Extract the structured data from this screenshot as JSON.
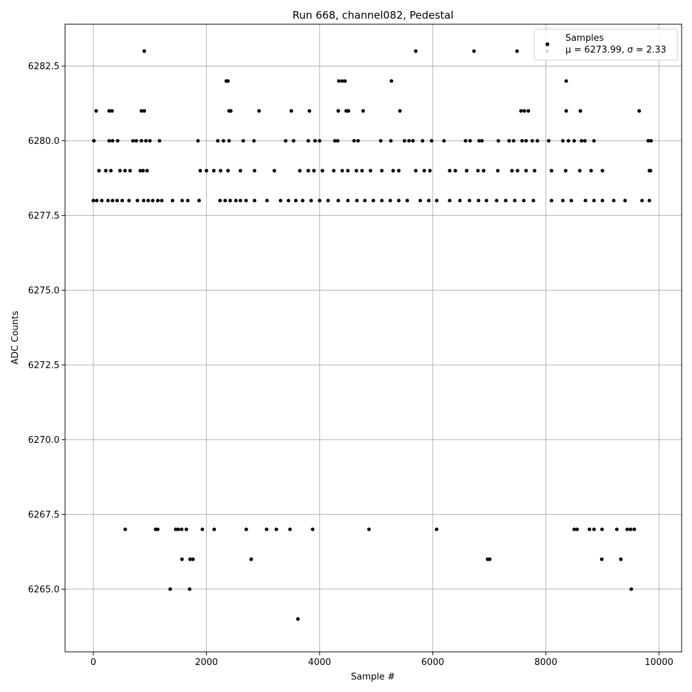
{
  "chart_data": {
    "type": "scatter",
    "title": "Run 668, channel082, Pedestal",
    "xlabel": "Sample #",
    "ylabel": "ADC Counts",
    "xlim": [
      -500,
      10400
    ],
    "ylim": [
      6262.9,
      6283.9
    ],
    "xticks": [
      0,
      2000,
      4000,
      6000,
      8000,
      10000
    ],
    "yticks": [
      6265.0,
      6267.5,
      6270.0,
      6272.5,
      6275.0,
      6277.5,
      6280.0,
      6282.5
    ],
    "grid": true,
    "legend_position": "top-right",
    "color": "#000000",
    "series": [
      {
        "name": "Samples",
        "annotation": "μ = 6273.99, σ = 2.33",
        "mean": 6273.99,
        "sigma": 2.33,
        "points": [
          [
            900,
            6283
          ],
          [
            5700,
            6283
          ],
          [
            6730,
            6283
          ],
          [
            7490,
            6283
          ],
          [
            8020,
            6283
          ],
          [
            2350,
            6282
          ],
          [
            2380,
            6282
          ],
          [
            4340,
            6282
          ],
          [
            4400,
            6282
          ],
          [
            4450,
            6282
          ],
          [
            5270,
            6282
          ],
          [
            8360,
            6282
          ],
          [
            50,
            6281
          ],
          [
            280,
            6281
          ],
          [
            330,
            6281
          ],
          [
            850,
            6281
          ],
          [
            900,
            6281
          ],
          [
            2400,
            6281
          ],
          [
            2430,
            6281
          ],
          [
            2930,
            6281
          ],
          [
            3500,
            6281
          ],
          [
            3820,
            6281
          ],
          [
            4330,
            6281
          ],
          [
            4470,
            6281
          ],
          [
            4510,
            6281
          ],
          [
            4770,
            6281
          ],
          [
            5420,
            6281
          ],
          [
            7560,
            6281
          ],
          [
            7620,
            6281
          ],
          [
            7690,
            6281
          ],
          [
            8360,
            6281
          ],
          [
            8610,
            6281
          ],
          [
            9650,
            6281
          ],
          [
            10,
            6280
          ],
          [
            280,
            6280
          ],
          [
            340,
            6280
          ],
          [
            430,
            6280
          ],
          [
            700,
            6280
          ],
          [
            760,
            6280
          ],
          [
            850,
            6280
          ],
          [
            930,
            6280
          ],
          [
            1000,
            6280
          ],
          [
            1170,
            6280
          ],
          [
            1850,
            6280
          ],
          [
            2200,
            6280
          ],
          [
            2300,
            6280
          ],
          [
            2400,
            6280
          ],
          [
            2650,
            6280
          ],
          [
            2840,
            6280
          ],
          [
            3400,
            6280
          ],
          [
            3540,
            6280
          ],
          [
            3800,
            6280
          ],
          [
            3920,
            6280
          ],
          [
            4000,
            6280
          ],
          [
            4270,
            6280
          ],
          [
            4320,
            6280
          ],
          [
            4610,
            6280
          ],
          [
            4680,
            6280
          ],
          [
            5080,
            6280
          ],
          [
            5260,
            6280
          ],
          [
            5500,
            6280
          ],
          [
            5580,
            6280
          ],
          [
            5650,
            6280
          ],
          [
            5820,
            6280
          ],
          [
            5980,
            6280
          ],
          [
            6200,
            6280
          ],
          [
            6580,
            6280
          ],
          [
            6660,
            6280
          ],
          [
            6820,
            6280
          ],
          [
            6870,
            6280
          ],
          [
            7160,
            6280
          ],
          [
            7350,
            6280
          ],
          [
            7430,
            6280
          ],
          [
            7580,
            6280
          ],
          [
            7650,
            6280
          ],
          [
            7760,
            6280
          ],
          [
            7850,
            6280
          ],
          [
            8050,
            6280
          ],
          [
            8300,
            6280
          ],
          [
            8400,
            6280
          ],
          [
            8500,
            6280
          ],
          [
            8630,
            6280
          ],
          [
            8690,
            6280
          ],
          [
            8850,
            6280
          ],
          [
            9810,
            6280
          ],
          [
            9860,
            6280
          ],
          [
            100,
            6279
          ],
          [
            220,
            6279
          ],
          [
            310,
            6279
          ],
          [
            470,
            6279
          ],
          [
            560,
            6279
          ],
          [
            650,
            6279
          ],
          [
            830,
            6279
          ],
          [
            880,
            6279
          ],
          [
            950,
            6279
          ],
          [
            1890,
            6279
          ],
          [
            2000,
            6279
          ],
          [
            2130,
            6279
          ],
          [
            2250,
            6279
          ],
          [
            2380,
            6279
          ],
          [
            2600,
            6279
          ],
          [
            2850,
            6279
          ],
          [
            3200,
            6279
          ],
          [
            3650,
            6279
          ],
          [
            3800,
            6279
          ],
          [
            3900,
            6279
          ],
          [
            4050,
            6279
          ],
          [
            4250,
            6279
          ],
          [
            4400,
            6279
          ],
          [
            4500,
            6279
          ],
          [
            4650,
            6279
          ],
          [
            4750,
            6279
          ],
          [
            4900,
            6279
          ],
          [
            5100,
            6279
          ],
          [
            5300,
            6279
          ],
          [
            5400,
            6279
          ],
          [
            5700,
            6279
          ],
          [
            5850,
            6279
          ],
          [
            5950,
            6279
          ],
          [
            6300,
            6279
          ],
          [
            6400,
            6279
          ],
          [
            6600,
            6279
          ],
          [
            6800,
            6279
          ],
          [
            6900,
            6279
          ],
          [
            7150,
            6279
          ],
          [
            7400,
            6279
          ],
          [
            7500,
            6279
          ],
          [
            7650,
            6279
          ],
          [
            7800,
            6279
          ],
          [
            8100,
            6279
          ],
          [
            8350,
            6279
          ],
          [
            8600,
            6279
          ],
          [
            8800,
            6279
          ],
          [
            9000,
            6279
          ],
          [
            9830,
            6279
          ],
          [
            9850,
            6279
          ],
          [
            0,
            6278
          ],
          [
            60,
            6278
          ],
          [
            150,
            6278
          ],
          [
            260,
            6278
          ],
          [
            340,
            6278
          ],
          [
            420,
            6278
          ],
          [
            510,
            6278
          ],
          [
            630,
            6278
          ],
          [
            780,
            6278
          ],
          [
            890,
            6278
          ],
          [
            970,
            6278
          ],
          [
            1050,
            6278
          ],
          [
            1140,
            6278
          ],
          [
            1210,
            6278
          ],
          [
            1400,
            6278
          ],
          [
            1570,
            6278
          ],
          [
            1670,
            6278
          ],
          [
            1870,
            6278
          ],
          [
            2240,
            6278
          ],
          [
            2330,
            6278
          ],
          [
            2420,
            6278
          ],
          [
            2520,
            6278
          ],
          [
            2600,
            6278
          ],
          [
            2700,
            6278
          ],
          [
            2850,
            6278
          ],
          [
            3070,
            6278
          ],
          [
            3310,
            6278
          ],
          [
            3450,
            6278
          ],
          [
            3580,
            6278
          ],
          [
            3700,
            6278
          ],
          [
            3850,
            6278
          ],
          [
            4000,
            6278
          ],
          [
            4150,
            6278
          ],
          [
            4330,
            6278
          ],
          [
            4500,
            6278
          ],
          [
            4660,
            6278
          ],
          [
            4800,
            6278
          ],
          [
            4950,
            6278
          ],
          [
            5100,
            6278
          ],
          [
            5250,
            6278
          ],
          [
            5400,
            6278
          ],
          [
            5550,
            6278
          ],
          [
            5780,
            6278
          ],
          [
            5930,
            6278
          ],
          [
            6070,
            6278
          ],
          [
            6300,
            6278
          ],
          [
            6480,
            6278
          ],
          [
            6650,
            6278
          ],
          [
            6810,
            6278
          ],
          [
            6950,
            6278
          ],
          [
            7130,
            6278
          ],
          [
            7290,
            6278
          ],
          [
            7450,
            6278
          ],
          [
            7610,
            6278
          ],
          [
            7780,
            6278
          ],
          [
            8100,
            6278
          ],
          [
            8300,
            6278
          ],
          [
            8450,
            6278
          ],
          [
            8700,
            6278
          ],
          [
            8850,
            6278
          ],
          [
            9000,
            6278
          ],
          [
            9200,
            6278
          ],
          [
            9400,
            6278
          ],
          [
            9700,
            6278
          ],
          [
            9830,
            6278
          ],
          [
            564,
            6267
          ],
          [
            1101,
            6267
          ],
          [
            1139,
            6267
          ],
          [
            1456,
            6267
          ],
          [
            1499,
            6267
          ],
          [
            1561,
            6267
          ],
          [
            1645,
            6267
          ],
          [
            1928,
            6267
          ],
          [
            2137,
            6267
          ],
          [
            2704,
            6267
          ],
          [
            3063,
            6267
          ],
          [
            3236,
            6267
          ],
          [
            3477,
            6267
          ],
          [
            3877,
            6267
          ],
          [
            4873,
            6267
          ],
          [
            6068,
            6267
          ],
          [
            8501,
            6267
          ],
          [
            8553,
            6267
          ],
          [
            8771,
            6267
          ],
          [
            8852,
            6267
          ],
          [
            8993,
            6267
          ],
          [
            9254,
            6267
          ],
          [
            9438,
            6267
          ],
          [
            9497,
            6267
          ],
          [
            9563,
            6267
          ],
          [
            1567,
            6266
          ],
          [
            1710,
            6266
          ],
          [
            1762,
            6266
          ],
          [
            2791,
            6266
          ],
          [
            6970,
            6266
          ],
          [
            7008,
            6266
          ],
          [
            8988,
            6266
          ],
          [
            9325,
            6266
          ],
          [
            1359,
            6265
          ],
          [
            1702,
            6265
          ],
          [
            9510,
            6265
          ],
          [
            3617,
            6264
          ]
        ]
      }
    ]
  }
}
